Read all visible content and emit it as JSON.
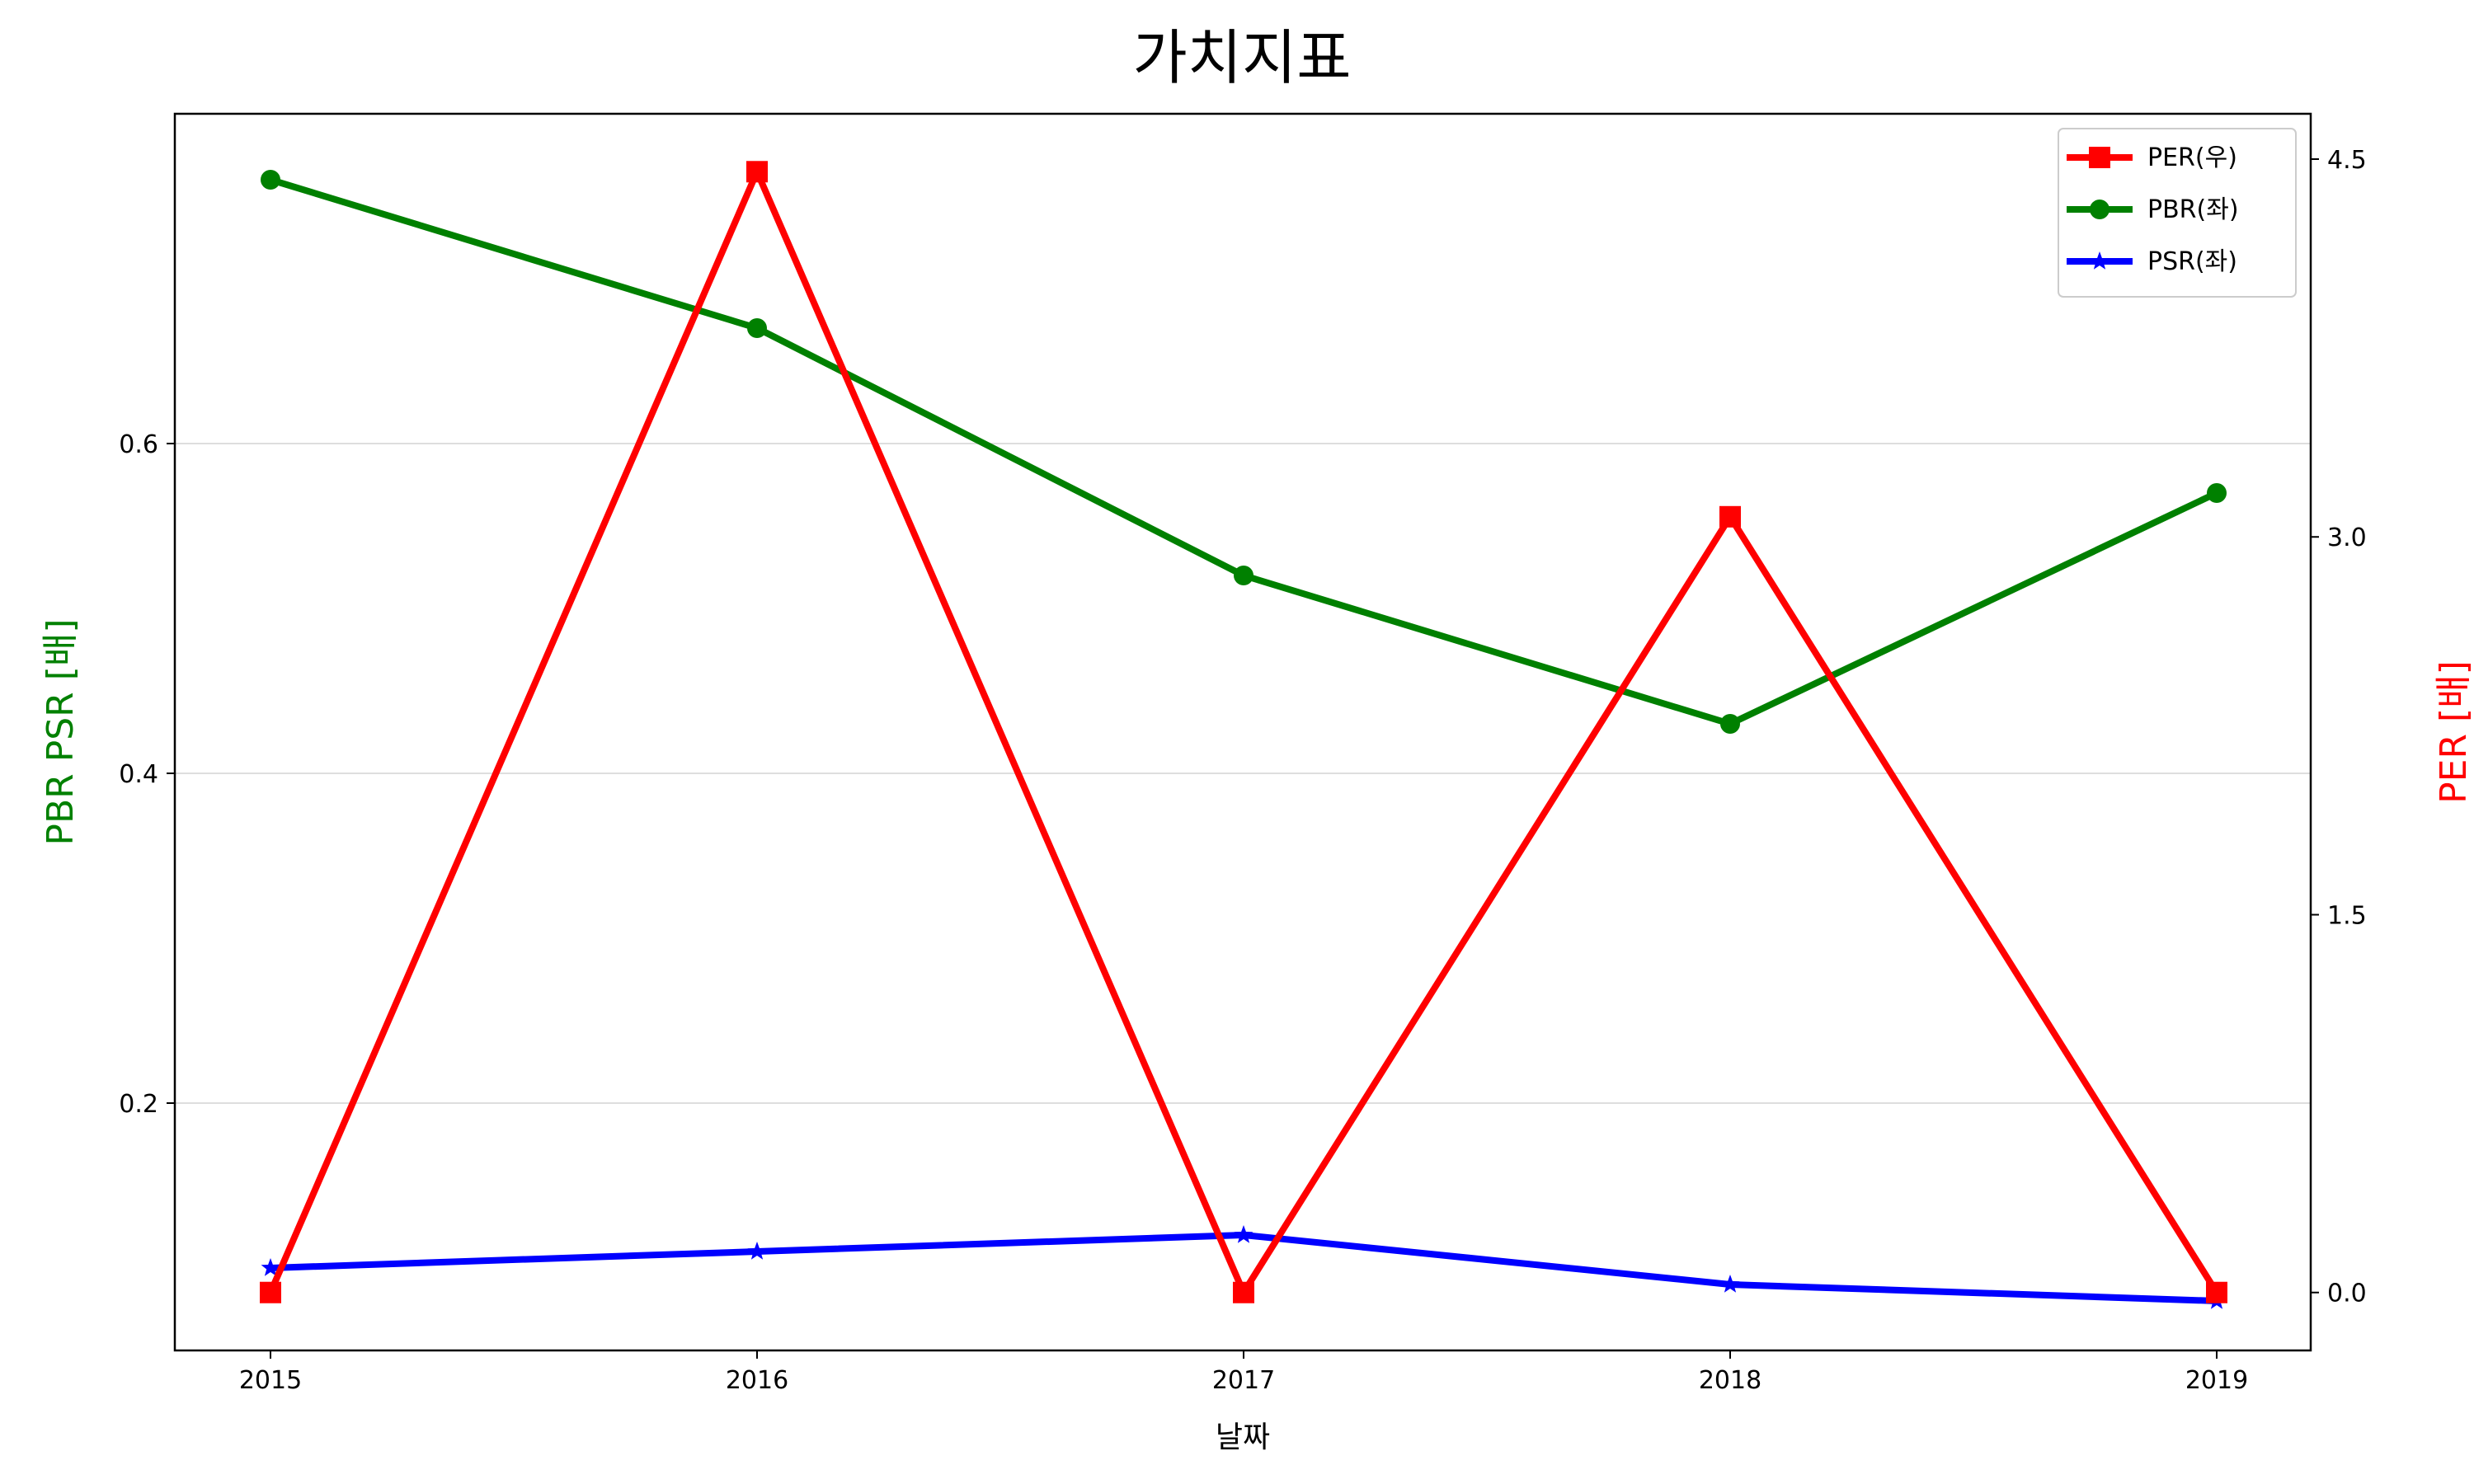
{
  "chart_data": {
    "type": "line",
    "title": "가치지표",
    "xlabel": "날짜",
    "ylabel_left": "PBR PSR [배]",
    "ylabel_right": "PER [배]",
    "categories": [
      "2015",
      "2016",
      "2017",
      "2018",
      "2019"
    ],
    "left_axis": {
      "ylim": [
        0.05,
        0.8
      ],
      "ticks": [
        0.2,
        0.4,
        0.6
      ],
      "tick_labels": [
        "0.2",
        "0.4",
        "0.6"
      ],
      "label_color": "#008000"
    },
    "right_axis": {
      "ylim": [
        -0.23,
        4.68
      ],
      "ticks": [
        0.0,
        1.5,
        3.0,
        4.5
      ],
      "tick_labels": [
        "0.0",
        "1.5",
        "3.0",
        "4.5"
      ],
      "label_color": "#ff0000"
    },
    "grid": "horizontal",
    "legend_position": "top-right",
    "series": [
      {
        "name": "PER(우)",
        "axis": "right",
        "color": "#ff0000",
        "marker": "square",
        "values": [
          0.0,
          4.45,
          0.0,
          3.08,
          0.0
        ]
      },
      {
        "name": "PBR(좌)",
        "axis": "left",
        "color": "#008000",
        "marker": "circle",
        "values": [
          0.76,
          0.67,
          0.52,
          0.43,
          0.57
        ]
      },
      {
        "name": "PSR(좌)",
        "axis": "left",
        "color": "#0000ff",
        "marker": "star",
        "values": [
          0.1,
          0.11,
          0.12,
          0.09,
          0.08
        ]
      }
    ]
  }
}
